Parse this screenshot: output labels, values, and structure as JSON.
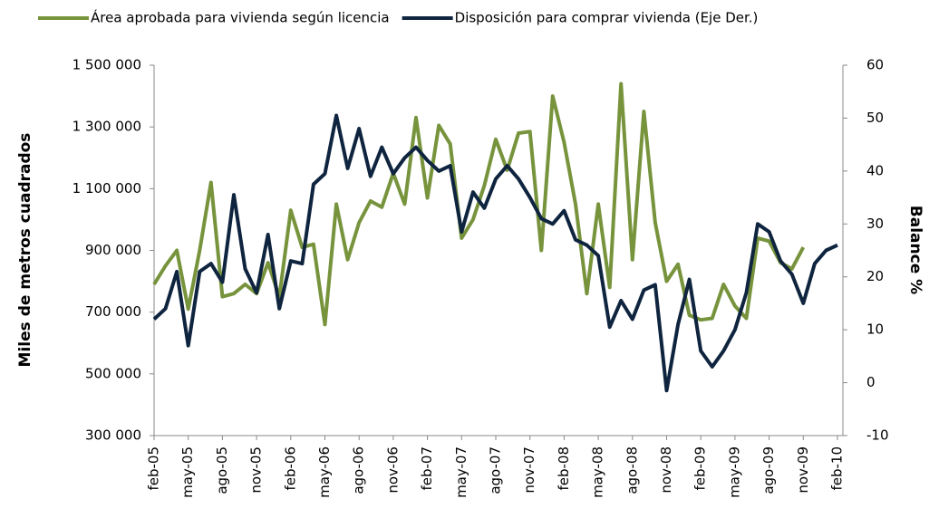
{
  "chart_data": {
    "type": "line",
    "categories": [
      "feb-05",
      null,
      null,
      "may-05",
      null,
      null,
      "ago-05",
      null,
      null,
      "nov-05",
      null,
      null,
      "feb-06",
      null,
      null,
      "may-06",
      null,
      null,
      "ago-06",
      null,
      null,
      "nov-06",
      null,
      null,
      "feb-07",
      null,
      null,
      "may-07",
      null,
      null,
      "ago-07",
      null,
      null,
      "nov-07",
      null,
      null,
      "feb-08",
      null,
      null,
      "may-08",
      null,
      null,
      "ago-08",
      null,
      null,
      "nov-08",
      null,
      null,
      "feb-09",
      null,
      null,
      "may-09",
      null,
      null,
      "ago-09",
      null,
      null,
      "nov-09",
      null,
      null,
      "feb-10"
    ],
    "series": [
      {
        "name": "Área aprobada para vivienda según licencia",
        "color": "#77933c",
        "axis": "y",
        "values": [
          790000,
          850000,
          900000,
          710000,
          900000,
          1120000,
          750000,
          760000,
          790000,
          760000,
          860000,
          750000,
          1030000,
          910000,
          920000,
          660000,
          1050000,
          870000,
          990000,
          1060000,
          1040000,
          1150000,
          1050000,
          1330000,
          1070000,
          1305000,
          1245000,
          940000,
          1000000,
          1110000,
          1260000,
          1160000,
          1280000,
          1285000,
          900000,
          1400000,
          1250000,
          1050000,
          760000,
          1050000,
          780000,
          1440000,
          870000,
          1350000,
          990000,
          800000,
          855000,
          690000,
          675000,
          680000,
          790000,
          720000,
          680000,
          940000,
          930000,
          860000,
          840000,
          910000,
          null,
          null,
          null
        ]
      },
      {
        "name": "Disposición para comprar vivienda (Eje Der.)",
        "color": "#0f243e",
        "axis": "y2",
        "values": [
          12,
          14,
          21,
          7,
          21,
          22.5,
          19,
          35.5,
          21.5,
          17,
          28,
          14,
          23,
          22.5,
          37.5,
          39.5,
          50.5,
          40.5,
          48,
          39,
          44.5,
          39.5,
          42.5,
          44.5,
          42,
          40,
          41,
          28.5,
          36,
          33,
          38.5,
          41,
          38.5,
          35,
          31,
          30,
          32.5,
          27,
          26,
          24,
          10.5,
          15.5,
          12,
          17.5,
          18.5,
          -1.5,
          11,
          19.5,
          6,
          3,
          6,
          10,
          17,
          30,
          28.5,
          23,
          20.5,
          15,
          22.5,
          25,
          26
        ]
      }
    ],
    "ylabel": "Miles de metros cuadrados",
    "y2label": "Balance %",
    "ylim": [
      300000,
      1500000
    ],
    "yticks": [
      {
        "value": 300000,
        "label": "300 000"
      },
      {
        "value": 500000,
        "label": "500 000"
      },
      {
        "value": 700000,
        "label": "700 000"
      },
      {
        "value": 900000,
        "label": "900 000"
      },
      {
        "value": 1100000,
        "label": "1 100 000"
      },
      {
        "value": 1300000,
        "label": "1 300 000"
      },
      {
        "value": 1500000,
        "label": "1 500 000"
      }
    ],
    "y2lim": [
      -10,
      60
    ],
    "y2ticks": [
      -10,
      0,
      10,
      20,
      30,
      40,
      50,
      60
    ],
    "legend": "top",
    "grid": false
  }
}
